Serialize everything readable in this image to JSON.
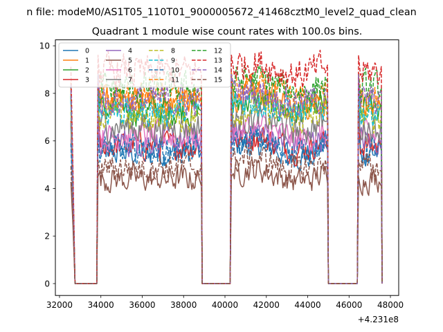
{
  "chart_data": {
    "type": "line",
    "suptitle": "n file: modeM0/AS1T05_110T01_9000005672_41468cztM0_level2_quad_clean",
    "title": "Quadrant 1 module wise count rates with 100.0s bins.",
    "xlabel": "",
    "ylabel": "",
    "offset_label": "+4.231e8",
    "xlim": [
      31800,
      48400
    ],
    "ylim": [
      -0.5,
      10.25
    ],
    "xticks": [
      32000,
      34000,
      36000,
      38000,
      40000,
      42000,
      44000,
      46000,
      48000
    ],
    "xtick_labels": [
      "32000",
      "34000",
      "36000",
      "38000",
      "40000",
      "42000",
      "44000",
      "46000",
      "48000"
    ],
    "yticks": [
      0,
      2,
      4,
      6,
      8,
      10
    ],
    "ytick_labels": [
      "0",
      "2",
      "4",
      "6",
      "8",
      "10"
    ],
    "legend_location": "upper-left",
    "legend_columns": 4,
    "segments": [
      {
        "start": 32550,
        "end": 32750,
        "kind": "edge-down"
      },
      {
        "start": 32750,
        "end": 33800,
        "kind": "gap"
      },
      {
        "start": 33800,
        "end": 38900,
        "kind": "on"
      },
      {
        "start": 38900,
        "end": 40250,
        "kind": "gap"
      },
      {
        "start": 40250,
        "end": 45000,
        "kind": "on"
      },
      {
        "start": 45000,
        "end": 46400,
        "kind": "gap"
      },
      {
        "start": 46400,
        "end": 47600,
        "kind": "on"
      }
    ],
    "series": [
      {
        "name": "0",
        "level": 5.5,
        "peak": 8.4,
        "color": "#1f77b4",
        "dash": "solid"
      },
      {
        "name": "1",
        "level": 7.6,
        "peak": 8.7,
        "color": "#ff7f0e",
        "dash": "solid"
      },
      {
        "name": "2",
        "level": 7.3,
        "peak": 8.3,
        "color": "#2ca02c",
        "dash": "solid"
      },
      {
        "name": "3",
        "level": 5.8,
        "peak": 7.2,
        "color": "#d62728",
        "dash": "solid"
      },
      {
        "name": "4",
        "level": 6.0,
        "peak": 7.0,
        "color": "#9467bd",
        "dash": "solid"
      },
      {
        "name": "5",
        "level": 4.4,
        "peak": 4.5,
        "color": "#8c564b",
        "dash": "solid"
      },
      {
        "name": "6",
        "level": 6.2,
        "peak": 6.4,
        "color": "#e377c2",
        "dash": "solid"
      },
      {
        "name": "7",
        "level": 6.6,
        "peak": 7.1,
        "color": "#7f7f7f",
        "dash": "solid"
      },
      {
        "name": "8",
        "level": 7.0,
        "peak": 7.6,
        "color": "#bcbd22",
        "dash": "dashed"
      },
      {
        "name": "9",
        "level": 7.3,
        "peak": 8.1,
        "color": "#17becf",
        "dash": "dashed"
      },
      {
        "name": "10",
        "level": 5.6,
        "peak": 6.2,
        "color": "#1f77b4",
        "dash": "dashed"
      },
      {
        "name": "11",
        "level": 7.8,
        "peak": 8.9,
        "color": "#ff7f0e",
        "dash": "dashed"
      },
      {
        "name": "12",
        "level": 8.2,
        "peak": 8.8,
        "color": "#2ca02c",
        "dash": "dashed"
      },
      {
        "name": "13",
        "level": 8.9,
        "peak": 9.6,
        "color": "#d62728",
        "dash": "dashed"
      },
      {
        "name": "14",
        "level": 7.7,
        "peak": 8.8,
        "color": "#9467bd",
        "dash": "dashed"
      },
      {
        "name": "15",
        "level": 4.9,
        "peak": 5.2,
        "color": "#8c564b",
        "dash": "dashed"
      }
    ]
  }
}
